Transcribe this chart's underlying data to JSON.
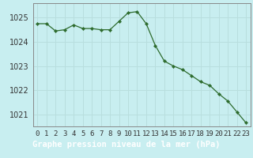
{
  "x": [
    0,
    1,
    2,
    3,
    4,
    5,
    6,
    7,
    8,
    9,
    10,
    11,
    12,
    13,
    14,
    15,
    16,
    17,
    18,
    19,
    20,
    21,
    22,
    23
  ],
  "y": [
    1024.75,
    1024.75,
    1024.45,
    1024.5,
    1024.7,
    1024.55,
    1024.55,
    1024.5,
    1024.5,
    1024.85,
    1025.2,
    1025.25,
    1024.75,
    1023.85,
    1023.2,
    1023.0,
    1022.85,
    1022.6,
    1022.35,
    1022.2,
    1021.85,
    1021.55,
    1021.1,
    1020.65
  ],
  "line_color": "#2d6b2d",
  "marker_color": "#2d6b2d",
  "bg_color": "#c8eef0",
  "bottom_bar_color": "#2d6b2d",
  "grid_color": "#b8dede",
  "axis_color": "#888888",
  "xlabel": "Graphe pression niveau de la mer (hPa)",
  "xlabel_color": "#ffffff",
  "ylim": [
    1020.5,
    1025.6
  ],
  "yticks": [
    1021,
    1022,
    1023,
    1024,
    1025
  ],
  "xlim": [
    -0.5,
    23.5
  ],
  "xticks": [
    0,
    1,
    2,
    3,
    4,
    5,
    6,
    7,
    8,
    9,
    10,
    11,
    12,
    13,
    14,
    15,
    16,
    17,
    18,
    19,
    20,
    21,
    22,
    23
  ],
  "tick_fontsize": 6.5,
  "xlabel_fontsize": 7.5,
  "ytick_fontsize": 7
}
